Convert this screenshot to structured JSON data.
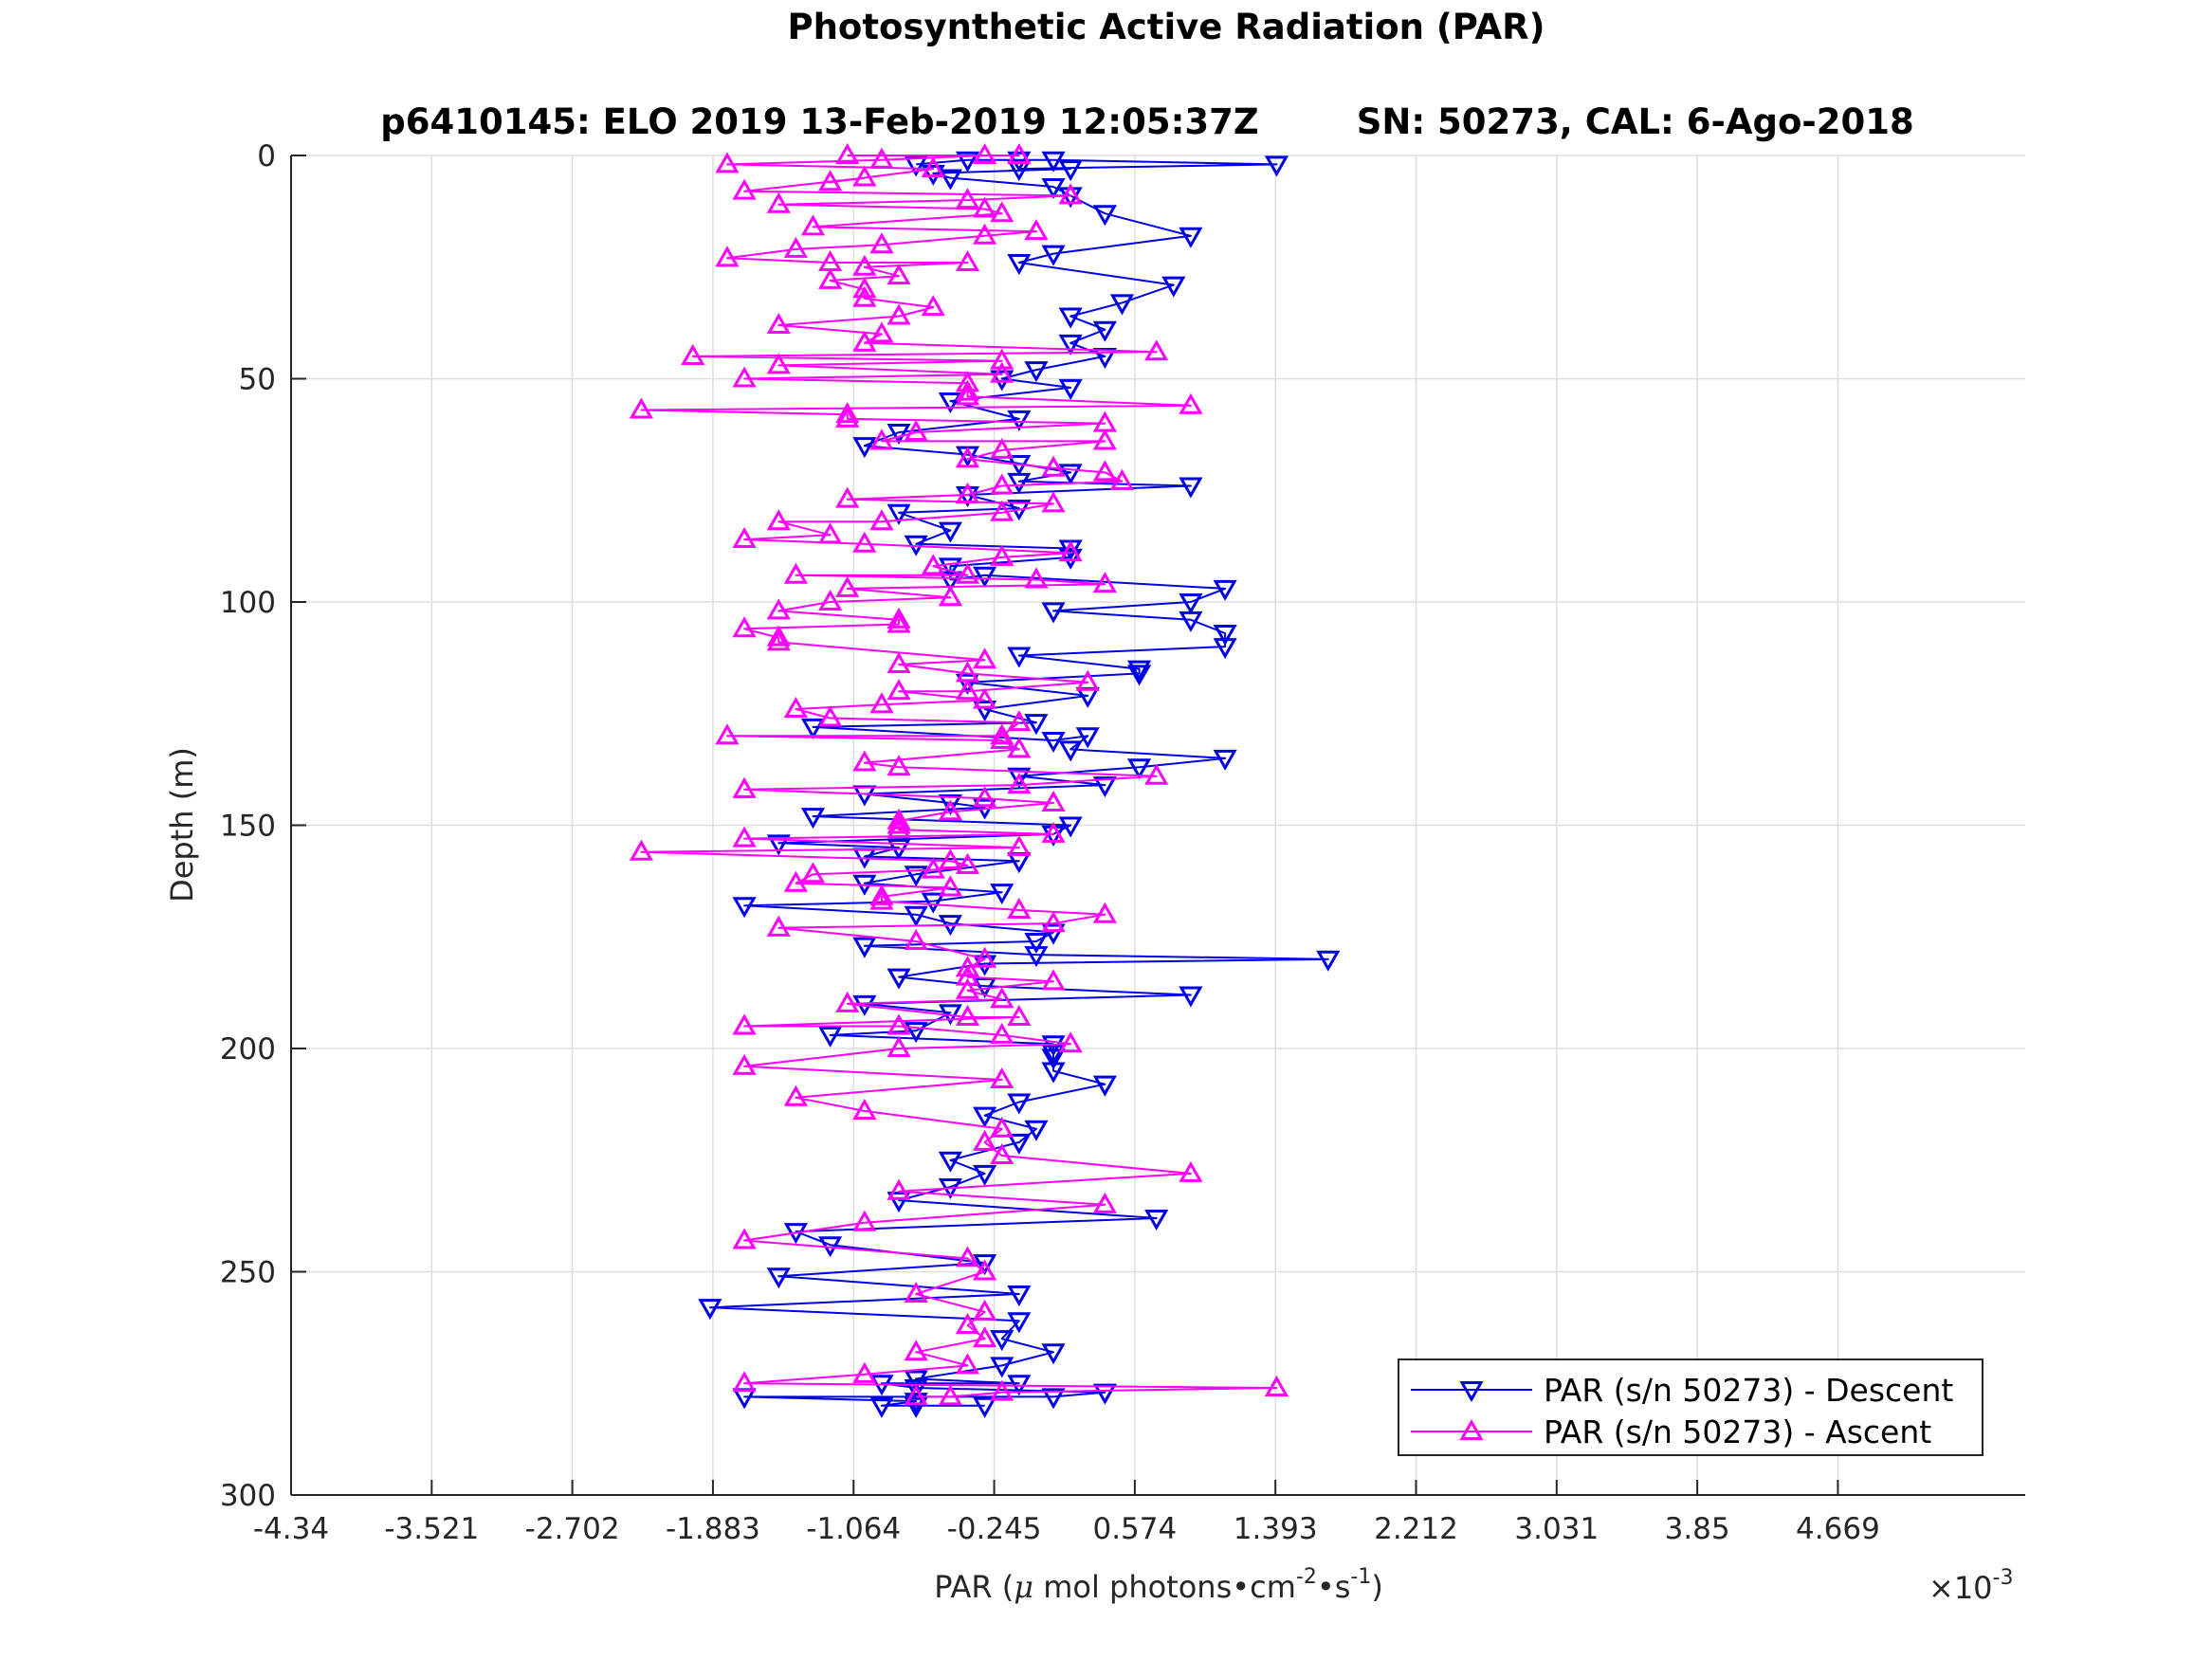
{
  "chart_data": {
    "type": "scatter",
    "title": "Photosynthetic Active Radiation (PAR)",
    "subtitle": "p6410145: ELO 2019 13-Feb-2019 12:05:37Z        SN: 50273, CAL: 6-Ago-2018",
    "xlabel_parts": [
      "PAR (",
      "μ",
      " mol photons•cm",
      "-2",
      "•s",
      "-1",
      ")"
    ],
    "x_exponent_parts": [
      "×10",
      "-3"
    ],
    "ylabel": "Depth (m)",
    "xlim": [
      -4.34,
      5.76
    ],
    "ylim": [
      0,
      300
    ],
    "y_reversed": true,
    "x_ticks": [
      -4.34,
      -3.521,
      -2.702,
      -1.883,
      -1.064,
      -0.245,
      0.574,
      1.393,
      2.212,
      3.031,
      3.85,
      4.669
    ],
    "x_tick_labels": [
      "-4.34",
      "-3.521",
      "-2.702",
      "-1.883",
      "-1.064",
      "-0.245",
      "0.574",
      "1.393",
      "2.212",
      "3.031",
      "3.85",
      "4.669"
    ],
    "y_ticks": [
      0,
      50,
      100,
      150,
      200,
      250,
      300
    ],
    "y_tick_labels": [
      "0",
      "50",
      "100",
      "150",
      "200",
      "250",
      "300"
    ],
    "grid": true,
    "legend_position": "bottom-right",
    "series": [
      {
        "name": "PAR (s/n 50273) - Descent",
        "color": "#0000e6",
        "marker": "triangle-down",
        "points": [
          [
            -0.7,
            2
          ],
          [
            -0.4,
            1
          ],
          [
            -0.1,
            1
          ],
          [
            0.1,
            1
          ],
          [
            1.4,
            2
          ],
          [
            -0.1,
            3
          ],
          [
            0.2,
            3
          ],
          [
            -0.6,
            4
          ],
          [
            -0.5,
            5
          ],
          [
            0.1,
            7
          ],
          [
            0.2,
            9
          ],
          [
            0.4,
            13
          ],
          [
            0.9,
            18
          ],
          [
            0.1,
            22
          ],
          [
            -0.1,
            24
          ],
          [
            0.8,
            29
          ],
          [
            0.5,
            33
          ],
          [
            0.2,
            36
          ],
          [
            0.4,
            39
          ],
          [
            0.2,
            42
          ],
          [
            0.4,
            45
          ],
          [
            0.0,
            48
          ],
          [
            -0.2,
            50
          ],
          [
            0.2,
            52
          ],
          [
            -0.5,
            55
          ],
          [
            -0.1,
            59
          ],
          [
            -0.8,
            62
          ],
          [
            -1.0,
            65
          ],
          [
            -0.4,
            67
          ],
          [
            -0.1,
            69
          ],
          [
            0.2,
            71
          ],
          [
            -0.1,
            73
          ],
          [
            0.9,
            74
          ],
          [
            -0.4,
            76
          ],
          [
            -0.1,
            79
          ],
          [
            -0.8,
            80
          ],
          [
            -0.5,
            84
          ],
          [
            -0.7,
            87
          ],
          [
            0.2,
            88
          ],
          [
            0.2,
            90
          ],
          [
            -0.5,
            92
          ],
          [
            -0.5,
            95
          ],
          [
            -0.3,
            94
          ],
          [
            1.1,
            97
          ],
          [
            0.9,
            100
          ],
          [
            0.1,
            102
          ],
          [
            0.9,
            104
          ],
          [
            1.1,
            107
          ],
          [
            1.1,
            110
          ],
          [
            -0.1,
            112
          ],
          [
            0.6,
            115
          ],
          [
            0.6,
            116
          ],
          [
            -0.4,
            118
          ],
          [
            0.3,
            121
          ],
          [
            -0.3,
            124
          ],
          [
            0.0,
            127
          ],
          [
            -1.3,
            128
          ],
          [
            0.1,
            131
          ],
          [
            0.3,
            130
          ],
          [
            0.2,
            133
          ],
          [
            1.1,
            135
          ],
          [
            0.6,
            137
          ],
          [
            -0.1,
            139
          ],
          [
            0.4,
            141
          ],
          [
            -1.0,
            143
          ],
          [
            -0.5,
            145
          ],
          [
            -0.3,
            146
          ],
          [
            -1.3,
            148
          ],
          [
            0.2,
            150
          ],
          [
            0.1,
            152
          ],
          [
            -1.5,
            154
          ],
          [
            -0.8,
            155
          ],
          [
            -1.0,
            157
          ],
          [
            -0.1,
            158
          ],
          [
            -0.7,
            161
          ],
          [
            -1.0,
            163
          ],
          [
            -0.2,
            165
          ],
          [
            -0.6,
            167
          ],
          [
            -1.7,
            168
          ],
          [
            -0.7,
            170
          ],
          [
            -0.5,
            172
          ],
          [
            0.1,
            174
          ],
          [
            0.0,
            176
          ],
          [
            -1.0,
            177
          ],
          [
            0.0,
            179
          ],
          [
            1.7,
            180
          ],
          [
            -0.3,
            181
          ],
          [
            -0.8,
            184
          ],
          [
            -0.3,
            186
          ],
          [
            0.9,
            188
          ],
          [
            -1.0,
            190
          ],
          [
            -0.5,
            192
          ],
          [
            -0.7,
            196
          ],
          [
            -1.2,
            197
          ],
          [
            0.1,
            199
          ],
          [
            0.1,
            201
          ],
          [
            0.1,
            202
          ],
          [
            0.1,
            205
          ],
          [
            0.4,
            208
          ],
          [
            -0.1,
            212
          ],
          [
            -0.3,
            215
          ],
          [
            0.0,
            218
          ],
          [
            -0.1,
            221
          ],
          [
            -0.5,
            225
          ],
          [
            -0.3,
            228
          ],
          [
            -0.5,
            231
          ],
          [
            -0.8,
            234
          ],
          [
            0.7,
            238
          ],
          [
            -1.4,
            241
          ],
          [
            -1.2,
            244
          ],
          [
            -0.3,
            248
          ],
          [
            -1.5,
            251
          ],
          [
            -0.1,
            255
          ],
          [
            -1.9,
            258
          ],
          [
            -0.1,
            261
          ],
          [
            -0.2,
            265
          ],
          [
            0.1,
            268
          ],
          [
            -0.2,
            271
          ],
          [
            -0.7,
            274
          ],
          [
            -0.1,
            275
          ],
          [
            -0.9,
            275
          ],
          [
            -0.7,
            276
          ],
          [
            0.4,
            277
          ],
          [
            0.1,
            278
          ],
          [
            -1.7,
            278
          ],
          [
            -0.7,
            279
          ],
          [
            -0.9,
            280
          ],
          [
            -0.7,
            280
          ],
          [
            -0.3,
            280
          ]
        ]
      },
      {
        "name": "PAR (s/n 50273) - Ascent",
        "color": "#ff00ff",
        "marker": "triangle-up",
        "points": [
          [
            -1.1,
            0
          ],
          [
            -0.1,
            0
          ],
          [
            -0.3,
            0
          ],
          [
            -0.9,
            1
          ],
          [
            -1.8,
            2
          ],
          [
            -0.6,
            3
          ],
          [
            -1.2,
            6
          ],
          [
            -1.0,
            5
          ],
          [
            -1.7,
            8
          ],
          [
            0.2,
            9
          ],
          [
            -0.4,
            10
          ],
          [
            -1.5,
            11
          ],
          [
            -0.3,
            12
          ],
          [
            -0.2,
            13
          ],
          [
            -1.3,
            16
          ],
          [
            0.0,
            17
          ],
          [
            -0.3,
            18
          ],
          [
            -0.9,
            20
          ],
          [
            -1.4,
            21
          ],
          [
            -1.8,
            23
          ],
          [
            -1.2,
            24
          ],
          [
            -0.4,
            24
          ],
          [
            -1.0,
            25
          ],
          [
            -0.8,
            27
          ],
          [
            -1.2,
            28
          ],
          [
            -1.0,
            30
          ],
          [
            -1.0,
            32
          ],
          [
            -0.6,
            34
          ],
          [
            -0.8,
            36
          ],
          [
            -1.5,
            38
          ],
          [
            -0.9,
            40
          ],
          [
            -1.0,
            42
          ],
          [
            0.7,
            44
          ],
          [
            -2.0,
            45
          ],
          [
            -0.2,
            46
          ],
          [
            -1.5,
            47
          ],
          [
            -0.2,
            49
          ],
          [
            -1.7,
            50
          ],
          [
            -0.4,
            51
          ],
          [
            -0.4,
            53
          ],
          [
            -0.4,
            54
          ],
          [
            0.9,
            56
          ],
          [
            -2.3,
            57
          ],
          [
            -1.1,
            58
          ],
          [
            -1.1,
            59
          ],
          [
            0.4,
            60
          ],
          [
            -0.7,
            62
          ],
          [
            -0.9,
            64
          ],
          [
            0.4,
            64
          ],
          [
            -0.2,
            66
          ],
          [
            -0.4,
            68
          ],
          [
            0.1,
            70
          ],
          [
            0.4,
            71
          ],
          [
            0.5,
            73
          ],
          [
            -0.2,
            74
          ],
          [
            -0.4,
            76
          ],
          [
            -1.1,
            77
          ],
          [
            0.1,
            78
          ],
          [
            -0.2,
            80
          ],
          [
            -0.9,
            82
          ],
          [
            -1.5,
            82
          ],
          [
            -1.2,
            85
          ],
          [
            -1.7,
            86
          ],
          [
            -1.0,
            87
          ],
          [
            0.2,
            89
          ],
          [
            -0.2,
            90
          ],
          [
            -0.6,
            92
          ],
          [
            -0.4,
            94
          ],
          [
            -1.4,
            94
          ],
          [
            0.0,
            95
          ],
          [
            0.4,
            96
          ],
          [
            -1.1,
            97
          ],
          [
            -0.5,
            99
          ],
          [
            -1.2,
            100
          ],
          [
            -1.5,
            102
          ],
          [
            -0.8,
            104
          ],
          [
            -0.8,
            105
          ],
          [
            -1.7,
            106
          ],
          [
            -1.5,
            108
          ],
          [
            -1.5,
            109
          ],
          [
            -0.3,
            113
          ],
          [
            -0.8,
            114
          ],
          [
            -0.4,
            116
          ],
          [
            0.3,
            118
          ],
          [
            -0.4,
            120
          ],
          [
            -0.8,
            120
          ],
          [
            -0.3,
            122
          ],
          [
            -0.9,
            123
          ],
          [
            -1.4,
            124
          ],
          [
            -1.2,
            126
          ],
          [
            -0.1,
            127
          ],
          [
            -0.2,
            130
          ],
          [
            -1.8,
            130
          ],
          [
            -0.2,
            131
          ],
          [
            -0.1,
            133
          ],
          [
            -1.0,
            136
          ],
          [
            -0.8,
            137
          ],
          [
            0.7,
            139
          ],
          [
            -0.1,
            141
          ],
          [
            -1.7,
            142
          ],
          [
            -0.3,
            144
          ],
          [
            0.1,
            145
          ],
          [
            -0.5,
            147
          ],
          [
            -0.8,
            149
          ],
          [
            -0.8,
            150
          ],
          [
            -0.8,
            151
          ],
          [
            0.1,
            152
          ],
          [
            -1.7,
            153
          ],
          [
            -0.1,
            155
          ],
          [
            -2.3,
            156
          ],
          [
            -0.5,
            158
          ],
          [
            -0.4,
            159
          ],
          [
            -0.6,
            160
          ],
          [
            -1.3,
            161
          ],
          [
            -1.4,
            163
          ],
          [
            -0.5,
            164
          ],
          [
            -0.9,
            166
          ],
          [
            -0.9,
            167
          ],
          [
            -0.1,
            169
          ],
          [
            0.4,
            170
          ],
          [
            0.1,
            172
          ],
          [
            -1.5,
            173
          ],
          [
            -0.7,
            176
          ],
          [
            -0.3,
            180
          ],
          [
            -0.4,
            182
          ],
          [
            -0.4,
            184
          ],
          [
            0.1,
            185
          ],
          [
            -0.4,
            187
          ],
          [
            -0.2,
            189
          ],
          [
            -1.1,
            190
          ],
          [
            -0.4,
            193
          ],
          [
            -0.1,
            193
          ],
          [
            -1.7,
            195
          ],
          [
            -0.8,
            195
          ],
          [
            -0.2,
            197
          ],
          [
            0.2,
            199
          ],
          [
            -0.8,
            200
          ],
          [
            -1.7,
            204
          ],
          [
            -0.2,
            207
          ],
          [
            -1.4,
            211
          ],
          [
            -1.0,
            214
          ],
          [
            -0.2,
            218
          ],
          [
            -0.3,
            221
          ],
          [
            -0.2,
            224
          ],
          [
            0.9,
            228
          ],
          [
            -0.8,
            232
          ],
          [
            0.4,
            235
          ],
          [
            -1.0,
            239
          ],
          [
            -1.7,
            243
          ],
          [
            -0.4,
            247
          ],
          [
            -0.3,
            250
          ],
          [
            -0.7,
            255
          ],
          [
            -0.3,
            259
          ],
          [
            -0.4,
            262
          ],
          [
            -0.3,
            265
          ],
          [
            -0.7,
            268
          ],
          [
            -0.4,
            271
          ],
          [
            -1.0,
            273
          ],
          [
            -1.7,
            275
          ],
          [
            1.4,
            276
          ],
          [
            -0.2,
            277
          ],
          [
            -0.5,
            278
          ],
          [
            -0.7,
            278
          ]
        ]
      }
    ]
  }
}
